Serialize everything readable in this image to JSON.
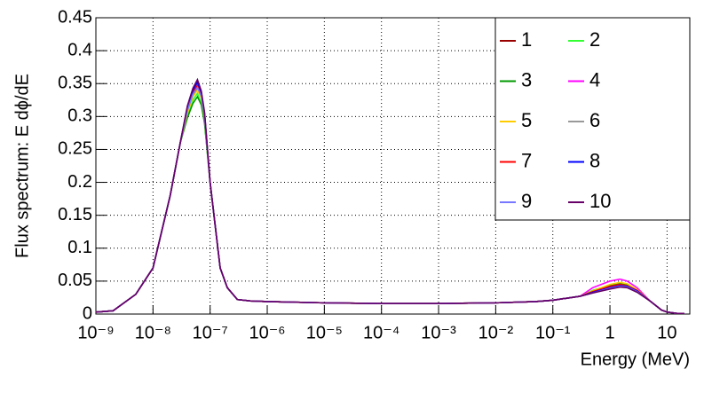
{
  "chart_data": {
    "type": "line",
    "xlabel": "Energy (MeV)",
    "ylabel": "Flux spectrum: E dϕ/dE",
    "xlog": true,
    "grid": true,
    "xlim": [
      1e-09,
      25
    ],
    "ylim": [
      0,
      0.45
    ],
    "xticks": [
      {
        "value": 1e-09,
        "label": "10⁻⁹"
      },
      {
        "value": 1e-08,
        "label": "10⁻⁸"
      },
      {
        "value": 1e-07,
        "label": "10⁻⁷"
      },
      {
        "value": 1e-06,
        "label": "10⁻⁶"
      },
      {
        "value": 1e-05,
        "label": "10⁻⁵"
      },
      {
        "value": 0.0001,
        "label": "10⁻⁴"
      },
      {
        "value": 0.001,
        "label": "10⁻³"
      },
      {
        "value": 0.01,
        "label": "10⁻²"
      },
      {
        "value": 0.1,
        "label": "10⁻¹"
      },
      1,
      10
    ],
    "yticks": [
      0,
      0.05,
      0.1,
      0.15,
      0.2,
      0.25,
      0.3,
      0.35,
      0.4,
      0.45
    ],
    "legend": "top-right",
    "x": [
      1e-09,
      2e-09,
      5e-09,
      1e-08,
      2e-08,
      3e-08,
      4e-08,
      5e-08,
      6e-08,
      7e-08,
      8e-08,
      1e-07,
      1.5e-07,
      2e-07,
      3e-07,
      5e-07,
      1e-06,
      1e-05,
      0.0001,
      0.001,
      0.01,
      0.05,
      0.1,
      0.3,
      0.5,
      1,
      1.5,
      2,
      3,
      5,
      8,
      10,
      15,
      20
    ],
    "series": [
      {
        "name": "1",
        "color": "#990000",
        "values": [
          0.003,
          0.005,
          0.03,
          0.07,
          0.18,
          0.26,
          0.308,
          0.333,
          0.342,
          0.33,
          0.298,
          0.2,
          0.07,
          0.04,
          0.022,
          0.02,
          0.019,
          0.017,
          0.016,
          0.016,
          0.017,
          0.019,
          0.021,
          0.027,
          0.033,
          0.04,
          0.043,
          0.042,
          0.035,
          0.02,
          0.006,
          0.003,
          0.001,
          0.001
        ]
      },
      {
        "name": "2",
        "color": "#33ff33",
        "values": [
          0.003,
          0.005,
          0.03,
          0.07,
          0.18,
          0.26,
          0.3,
          0.325,
          0.335,
          0.32,
          0.29,
          0.2,
          0.07,
          0.04,
          0.022,
          0.02,
          0.019,
          0.017,
          0.016,
          0.016,
          0.017,
          0.019,
          0.021,
          0.027,
          0.036,
          0.044,
          0.047,
          0.045,
          0.037,
          0.02,
          0.006,
          0.003,
          0.001,
          0.001
        ]
      },
      {
        "name": "3",
        "color": "#009900",
        "values": [
          0.003,
          0.005,
          0.03,
          0.07,
          0.18,
          0.26,
          0.298,
          0.32,
          0.33,
          0.318,
          0.29,
          0.2,
          0.07,
          0.04,
          0.022,
          0.02,
          0.019,
          0.017,
          0.016,
          0.016,
          0.017,
          0.019,
          0.021,
          0.027,
          0.035,
          0.043,
          0.046,
          0.044,
          0.036,
          0.02,
          0.006,
          0.003,
          0.001,
          0.001
        ]
      },
      {
        "name": "4",
        "color": "#ff00ff",
        "values": [
          0.003,
          0.005,
          0.03,
          0.07,
          0.18,
          0.26,
          0.312,
          0.338,
          0.35,
          0.335,
          0.305,
          0.2,
          0.07,
          0.04,
          0.022,
          0.02,
          0.019,
          0.017,
          0.016,
          0.016,
          0.017,
          0.019,
          0.021,
          0.027,
          0.04,
          0.05,
          0.053,
          0.05,
          0.04,
          0.02,
          0.006,
          0.003,
          0.001,
          0.001
        ]
      },
      {
        "name": "5",
        "color": "#ffcc00",
        "values": [
          0.003,
          0.005,
          0.03,
          0.07,
          0.18,
          0.26,
          0.305,
          0.33,
          0.34,
          0.328,
          0.297,
          0.2,
          0.07,
          0.04,
          0.022,
          0.02,
          0.019,
          0.017,
          0.016,
          0.016,
          0.017,
          0.019,
          0.021,
          0.027,
          0.035,
          0.045,
          0.048,
          0.046,
          0.037,
          0.02,
          0.006,
          0.003,
          0.001,
          0.001
        ]
      },
      {
        "name": "6",
        "color": "#999999",
        "values": [
          0.003,
          0.005,
          0.03,
          0.07,
          0.18,
          0.26,
          0.31,
          0.336,
          0.348,
          0.332,
          0.3,
          0.2,
          0.07,
          0.04,
          0.022,
          0.02,
          0.019,
          0.017,
          0.016,
          0.016,
          0.017,
          0.019,
          0.021,
          0.027,
          0.032,
          0.039,
          0.042,
          0.041,
          0.034,
          0.02,
          0.006,
          0.003,
          0.001,
          0.001
        ]
      },
      {
        "name": "7",
        "color": "#ff0000",
        "values": [
          0.003,
          0.005,
          0.03,
          0.07,
          0.18,
          0.26,
          0.311,
          0.337,
          0.347,
          0.334,
          0.301,
          0.2,
          0.07,
          0.04,
          0.022,
          0.02,
          0.019,
          0.017,
          0.016,
          0.016,
          0.017,
          0.019,
          0.021,
          0.027,
          0.034,
          0.042,
          0.045,
          0.043,
          0.036,
          0.02,
          0.006,
          0.003,
          0.001,
          0.001
        ]
      },
      {
        "name": "8",
        "color": "#0000ff",
        "values": [
          0.003,
          0.005,
          0.03,
          0.07,
          0.18,
          0.26,
          0.314,
          0.34,
          0.352,
          0.337,
          0.303,
          0.2,
          0.07,
          0.04,
          0.022,
          0.02,
          0.019,
          0.017,
          0.016,
          0.016,
          0.017,
          0.019,
          0.021,
          0.027,
          0.033,
          0.04,
          0.043,
          0.042,
          0.035,
          0.02,
          0.006,
          0.003,
          0.001,
          0.001
        ]
      },
      {
        "name": "9",
        "color": "#7777ff",
        "values": [
          0.003,
          0.005,
          0.03,
          0.07,
          0.18,
          0.26,
          0.309,
          0.334,
          0.344,
          0.331,
          0.299,
          0.2,
          0.07,
          0.04,
          0.022,
          0.02,
          0.019,
          0.017,
          0.016,
          0.016,
          0.017,
          0.019,
          0.021,
          0.027,
          0.032,
          0.039,
          0.042,
          0.041,
          0.034,
          0.02,
          0.006,
          0.003,
          0.001,
          0.001
        ]
      },
      {
        "name": "10",
        "color": "#660066",
        "values": [
          0.003,
          0.005,
          0.03,
          0.07,
          0.18,
          0.26,
          0.316,
          0.343,
          0.356,
          0.339,
          0.306,
          0.2,
          0.07,
          0.04,
          0.022,
          0.02,
          0.019,
          0.017,
          0.016,
          0.016,
          0.017,
          0.019,
          0.021,
          0.027,
          0.032,
          0.038,
          0.041,
          0.04,
          0.033,
          0.02,
          0.006,
          0.003,
          0.001,
          0.001
        ]
      }
    ]
  }
}
